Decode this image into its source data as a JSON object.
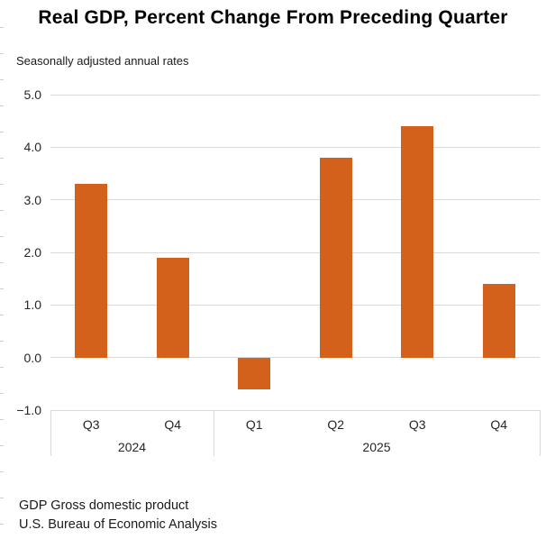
{
  "title": "Real GDP, Percent Change From Preceding Quarter",
  "subtitle": "Seasonally adjusted annual rates",
  "footer": {
    "line1": "GDP Gross domestic product",
    "line2": "U.S. Bureau of Economic Analysis"
  },
  "colors": {
    "bar": "#d4611b",
    "gridline": "#d9d9d9",
    "axis_text": "#262626",
    "title_text": "#000000"
  },
  "chart_data": {
    "type": "bar",
    "title": "Real GDP, Percent Change From Preceding Quarter",
    "subtitle": "Seasonally adjusted annual rates",
    "categories": [
      "Q3",
      "Q4",
      "Q1",
      "Q2",
      "Q3",
      "Q4"
    ],
    "values": [
      3.3,
      1.9,
      -0.6,
      3.8,
      4.4,
      1.4
    ],
    "groups": [
      {
        "label": "2024",
        "from": 0,
        "to": 2
      },
      {
        "label": "2025",
        "from": 2,
        "to": 6
      }
    ],
    "yticks": [
      5.0,
      4.0,
      3.0,
      2.0,
      1.0,
      0.0,
      -1.0
    ],
    "ylim": [
      -1.0,
      5.0
    ],
    "xlabel": "",
    "ylabel": "",
    "grid": "horizontal",
    "legend": "none",
    "bar_color": "#d4611b"
  }
}
